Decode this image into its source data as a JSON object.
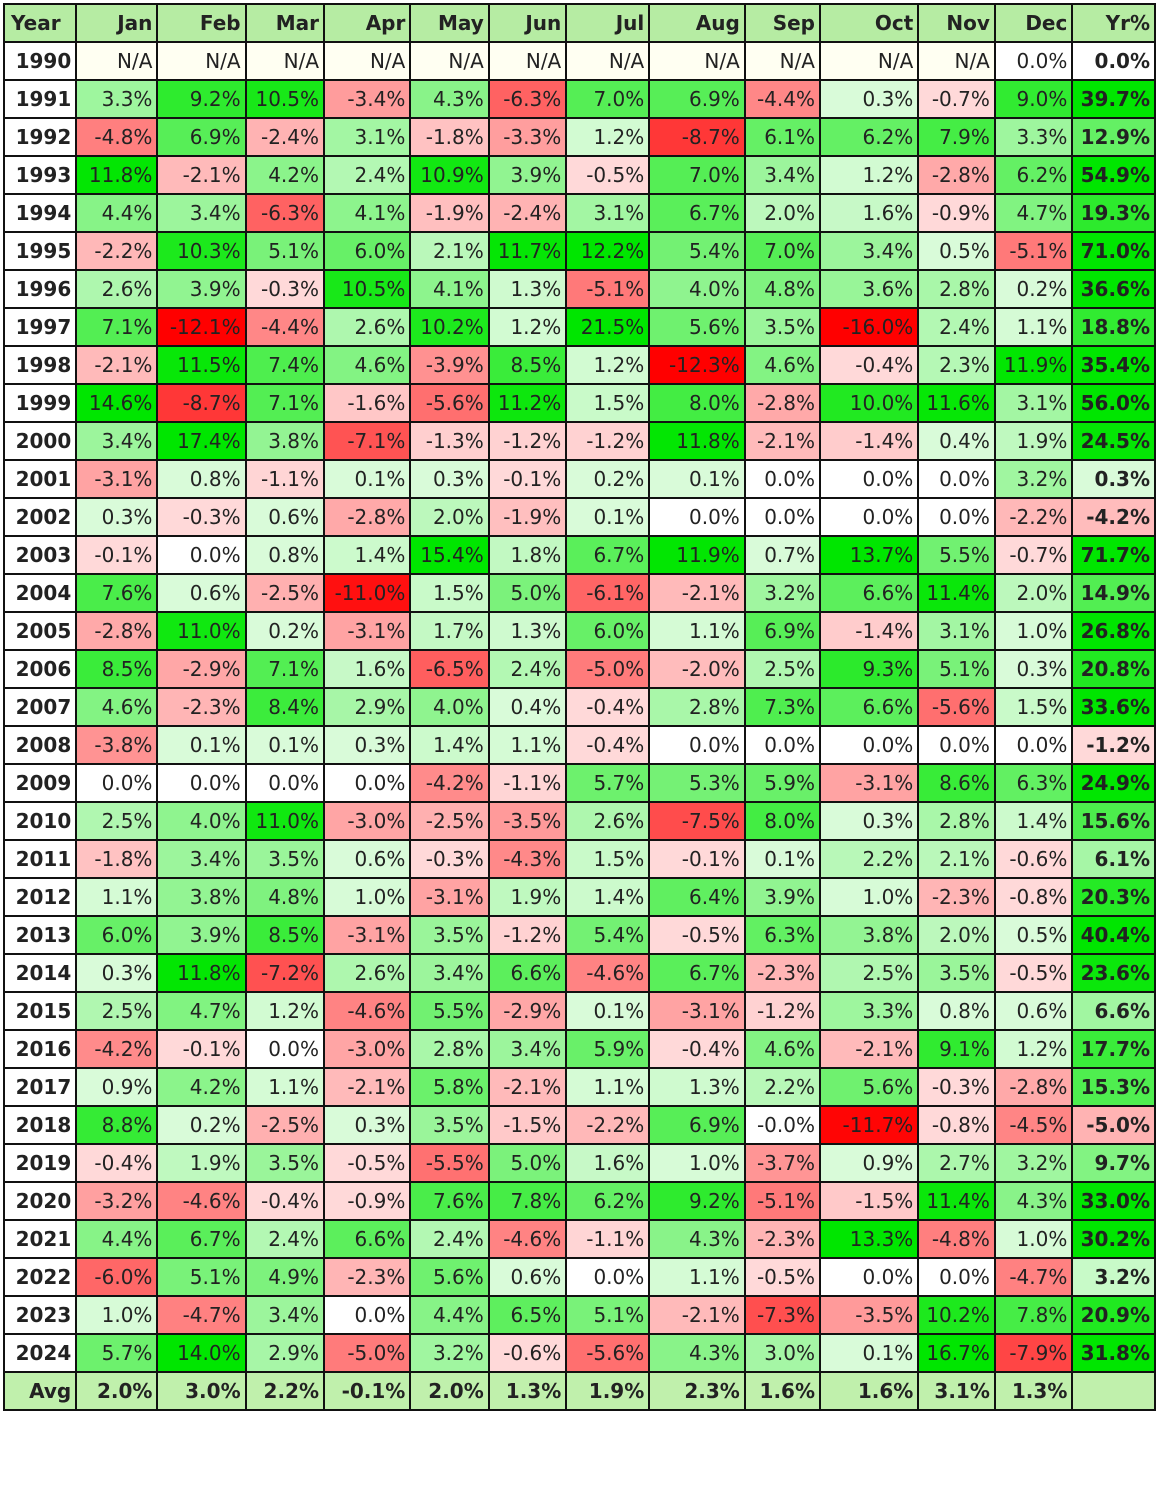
{
  "chart_data": {
    "type": "heatmap",
    "columns": [
      "Year",
      "Jan",
      "Feb",
      "Mar",
      "Apr",
      "May",
      "Jun",
      "Jul",
      "Aug",
      "Sep",
      "Oct",
      "Nov",
      "Dec",
      "Yr%"
    ],
    "rows": [
      {
        "year": "1990",
        "values": [
          "N/A",
          "N/A",
          "N/A",
          "N/A",
          "N/A",
          "N/A",
          "N/A",
          "N/A",
          "N/A",
          "N/A",
          "N/A",
          "0.0%"
        ],
        "total": "0.0%"
      },
      {
        "year": "1991",
        "values": [
          "3.3%",
          "9.2%",
          "10.5%",
          "-3.4%",
          "4.3%",
          "-6.3%",
          "7.0%",
          "6.9%",
          "-4.4%",
          "0.3%",
          "-0.7%",
          "9.0%"
        ],
        "total": "39.7%"
      },
      {
        "year": "1992",
        "values": [
          "-4.8%",
          "6.9%",
          "-2.4%",
          "3.1%",
          "-1.8%",
          "-3.3%",
          "1.2%",
          "-8.7%",
          "6.1%",
          "6.2%",
          "7.9%",
          "3.3%"
        ],
        "total": "12.9%"
      },
      {
        "year": "1993",
        "values": [
          "11.8%",
          "-2.1%",
          "4.2%",
          "2.4%",
          "10.9%",
          "3.9%",
          "-0.5%",
          "7.0%",
          "3.4%",
          "1.2%",
          "-2.8%",
          "6.2%"
        ],
        "total": "54.9%"
      },
      {
        "year": "1994",
        "values": [
          "4.4%",
          "3.4%",
          "-6.3%",
          "4.1%",
          "-1.9%",
          "-2.4%",
          "3.1%",
          "6.7%",
          "2.0%",
          "1.6%",
          "-0.9%",
          "4.7%"
        ],
        "total": "19.3%"
      },
      {
        "year": "1995",
        "values": [
          "-2.2%",
          "10.3%",
          "5.1%",
          "6.0%",
          "2.1%",
          "11.7%",
          "12.2%",
          "5.4%",
          "7.0%",
          "3.4%",
          "0.5%",
          "-5.1%"
        ],
        "total": "71.0%"
      },
      {
        "year": "1996",
        "values": [
          "2.6%",
          "3.9%",
          "-0.3%",
          "10.5%",
          "4.1%",
          "1.3%",
          "-5.1%",
          "4.0%",
          "4.8%",
          "3.6%",
          "2.8%",
          "0.2%"
        ],
        "total": "36.6%"
      },
      {
        "year": "1997",
        "values": [
          "7.1%",
          "-12.1%",
          "-4.4%",
          "2.6%",
          "10.2%",
          "1.2%",
          "21.5%",
          "5.6%",
          "3.5%",
          "-16.0%",
          "2.4%",
          "1.1%"
        ],
        "total": "18.8%"
      },
      {
        "year": "1998",
        "values": [
          "-2.1%",
          "11.5%",
          "7.4%",
          "4.6%",
          "-3.9%",
          "8.5%",
          "1.2%",
          "-12.3%",
          "4.6%",
          "-0.4%",
          "2.3%",
          "11.9%"
        ],
        "total": "35.4%"
      },
      {
        "year": "1999",
        "values": [
          "14.6%",
          "-8.7%",
          "7.1%",
          "-1.6%",
          "-5.6%",
          "11.2%",
          "1.5%",
          "8.0%",
          "-2.8%",
          "10.0%",
          "11.6%",
          "3.1%"
        ],
        "total": "56.0%"
      },
      {
        "year": "2000",
        "values": [
          "3.4%",
          "17.4%",
          "3.8%",
          "-7.1%",
          "-1.3%",
          "-1.2%",
          "-1.2%",
          "11.8%",
          "-2.1%",
          "-1.4%",
          "0.4%",
          "1.9%"
        ],
        "total": "24.5%"
      },
      {
        "year": "2001",
        "values": [
          "-3.1%",
          "0.8%",
          "-1.1%",
          "0.1%",
          "0.3%",
          "-0.1%",
          "0.2%",
          "0.1%",
          "0.0%",
          "0.0%",
          "0.0%",
          "3.2%"
        ],
        "total": "0.3%"
      },
      {
        "year": "2002",
        "values": [
          "0.3%",
          "-0.3%",
          "0.6%",
          "-2.8%",
          "2.0%",
          "-1.9%",
          "0.1%",
          "0.0%",
          "0.0%",
          "0.0%",
          "0.0%",
          "-2.2%"
        ],
        "total": "-4.2%"
      },
      {
        "year": "2003",
        "values": [
          "-0.1%",
          "0.0%",
          "0.8%",
          "1.4%",
          "15.4%",
          "1.8%",
          "6.7%",
          "11.9%",
          "0.7%",
          "13.7%",
          "5.5%",
          "-0.7%"
        ],
        "total": "71.7%"
      },
      {
        "year": "2004",
        "values": [
          "7.6%",
          "0.6%",
          "-2.5%",
          "-11.0%",
          "1.5%",
          "5.0%",
          "-6.1%",
          "-2.1%",
          "3.2%",
          "6.6%",
          "11.4%",
          "2.0%"
        ],
        "total": "14.9%"
      },
      {
        "year": "2005",
        "values": [
          "-2.8%",
          "11.0%",
          "0.2%",
          "-3.1%",
          "1.7%",
          "1.3%",
          "6.0%",
          "1.1%",
          "6.9%",
          "-1.4%",
          "3.1%",
          "1.0%"
        ],
        "total": "26.8%"
      },
      {
        "year": "2006",
        "values": [
          "8.5%",
          "-2.9%",
          "7.1%",
          "1.6%",
          "-6.5%",
          "2.4%",
          "-5.0%",
          "-2.0%",
          "2.5%",
          "9.3%",
          "5.1%",
          "0.3%"
        ],
        "total": "20.8%"
      },
      {
        "year": "2007",
        "values": [
          "4.6%",
          "-2.3%",
          "8.4%",
          "2.9%",
          "4.0%",
          "0.4%",
          "-0.4%",
          "2.8%",
          "7.3%",
          "6.6%",
          "-5.6%",
          "1.5%"
        ],
        "total": "33.6%"
      },
      {
        "year": "2008",
        "values": [
          "-3.8%",
          "0.1%",
          "0.1%",
          "0.3%",
          "1.4%",
          "1.1%",
          "-0.4%",
          "0.0%",
          "0.0%",
          "0.0%",
          "0.0%",
          "0.0%"
        ],
        "total": "-1.2%"
      },
      {
        "year": "2009",
        "values": [
          "0.0%",
          "0.0%",
          "0.0%",
          "0.0%",
          "-4.2%",
          "-1.1%",
          "5.7%",
          "5.3%",
          "5.9%",
          "-3.1%",
          "8.6%",
          "6.3%"
        ],
        "total": "24.9%"
      },
      {
        "year": "2010",
        "values": [
          "2.5%",
          "4.0%",
          "11.0%",
          "-3.0%",
          "-2.5%",
          "-3.5%",
          "2.6%",
          "-7.5%",
          "8.0%",
          "0.3%",
          "2.8%",
          "1.4%"
        ],
        "total": "15.6%"
      },
      {
        "year": "2011",
        "values": [
          "-1.8%",
          "3.4%",
          "3.5%",
          "0.6%",
          "-0.3%",
          "-4.3%",
          "1.5%",
          "-0.1%",
          "0.1%",
          "2.2%",
          "2.1%",
          "-0.6%"
        ],
        "total": "6.1%"
      },
      {
        "year": "2012",
        "values": [
          "1.1%",
          "3.8%",
          "4.8%",
          "1.0%",
          "-3.1%",
          "1.9%",
          "1.4%",
          "6.4%",
          "3.9%",
          "1.0%",
          "-2.3%",
          "-0.8%"
        ],
        "total": "20.3%"
      },
      {
        "year": "2013",
        "values": [
          "6.0%",
          "3.9%",
          "8.5%",
          "-3.1%",
          "3.5%",
          "-1.2%",
          "5.4%",
          "-0.5%",
          "6.3%",
          "3.8%",
          "2.0%",
          "0.5%"
        ],
        "total": "40.4%"
      },
      {
        "year": "2014",
        "values": [
          "0.3%",
          "11.8%",
          "-7.2%",
          "2.6%",
          "3.4%",
          "6.6%",
          "-4.6%",
          "6.7%",
          "-2.3%",
          "2.5%",
          "3.5%",
          "-0.5%"
        ],
        "total": "23.6%"
      },
      {
        "year": "2015",
        "values": [
          "2.5%",
          "4.7%",
          "1.2%",
          "-4.6%",
          "5.5%",
          "-2.9%",
          "0.1%",
          "-3.1%",
          "-1.2%",
          "3.3%",
          "0.8%",
          "0.6%"
        ],
        "total": "6.6%"
      },
      {
        "year": "2016",
        "values": [
          "-4.2%",
          "-0.1%",
          "0.0%",
          "-3.0%",
          "2.8%",
          "3.4%",
          "5.9%",
          "-0.4%",
          "4.6%",
          "-2.1%",
          "9.1%",
          "1.2%"
        ],
        "total": "17.7%"
      },
      {
        "year": "2017",
        "values": [
          "0.9%",
          "4.2%",
          "1.1%",
          "-2.1%",
          "5.8%",
          "-2.1%",
          "1.1%",
          "1.3%",
          "2.2%",
          "5.6%",
          "-0.3%",
          "-2.8%"
        ],
        "total": "15.3%"
      },
      {
        "year": "2018",
        "values": [
          "8.8%",
          "0.2%",
          "-2.5%",
          "0.3%",
          "3.5%",
          "-1.5%",
          "-2.2%",
          "6.9%",
          "-0.0%",
          "-11.7%",
          "-0.8%",
          "-4.5%"
        ],
        "total": "-5.0%"
      },
      {
        "year": "2019",
        "values": [
          "-0.4%",
          "1.9%",
          "3.5%",
          "-0.5%",
          "-5.5%",
          "5.0%",
          "1.6%",
          "1.0%",
          "-3.7%",
          "0.9%",
          "2.7%",
          "3.2%"
        ],
        "total": "9.7%"
      },
      {
        "year": "2020",
        "values": [
          "-3.2%",
          "-4.6%",
          "-0.4%",
          "-0.9%",
          "7.6%",
          "7.8%",
          "6.2%",
          "9.2%",
          "-5.1%",
          "-1.5%",
          "11.4%",
          "4.3%"
        ],
        "total": "33.0%"
      },
      {
        "year": "2021",
        "values": [
          "4.4%",
          "6.7%",
          "2.4%",
          "6.6%",
          "2.4%",
          "-4.6%",
          "-1.1%",
          "4.3%",
          "-2.3%",
          "13.3%",
          "-4.8%",
          "1.0%"
        ],
        "total": "30.2%"
      },
      {
        "year": "2022",
        "values": [
          "-6.0%",
          "5.1%",
          "4.9%",
          "-2.3%",
          "5.6%",
          "0.6%",
          "0.0%",
          "1.1%",
          "-0.5%",
          "0.0%",
          "0.0%",
          "-4.7%"
        ],
        "total": "3.2%"
      },
      {
        "year": "2023",
        "values": [
          "1.0%",
          "-4.7%",
          "3.4%",
          "0.0%",
          "4.4%",
          "6.5%",
          "5.1%",
          "-2.1%",
          "-7.3%",
          "-3.5%",
          "10.2%",
          "7.8%"
        ],
        "total": "20.9%"
      },
      {
        "year": "2024",
        "values": [
          "5.7%",
          "14.0%",
          "2.9%",
          "-5.0%",
          "3.2%",
          "-0.6%",
          "-5.6%",
          "4.3%",
          "3.0%",
          "0.1%",
          "16.7%",
          "-7.9%"
        ],
        "total": "31.8%"
      }
    ],
    "avg_label": "Avg",
    "averages": [
      "2.0%",
      "3.0%",
      "2.2%",
      "-0.1%",
      "2.0%",
      "1.3%",
      "1.9%",
      "2.3%",
      "1.6%",
      "1.6%",
      "3.1%",
      "1.3%"
    ],
    "colors": {
      "header_bg": "#b6eca3",
      "avg_bg": "#c0f0ac",
      "na_bg": "#fffff2",
      "positive_max": "#00e600",
      "negative_max": "#ff0000",
      "neutral": "#ffffff",
      "grid": "#111111"
    }
  }
}
